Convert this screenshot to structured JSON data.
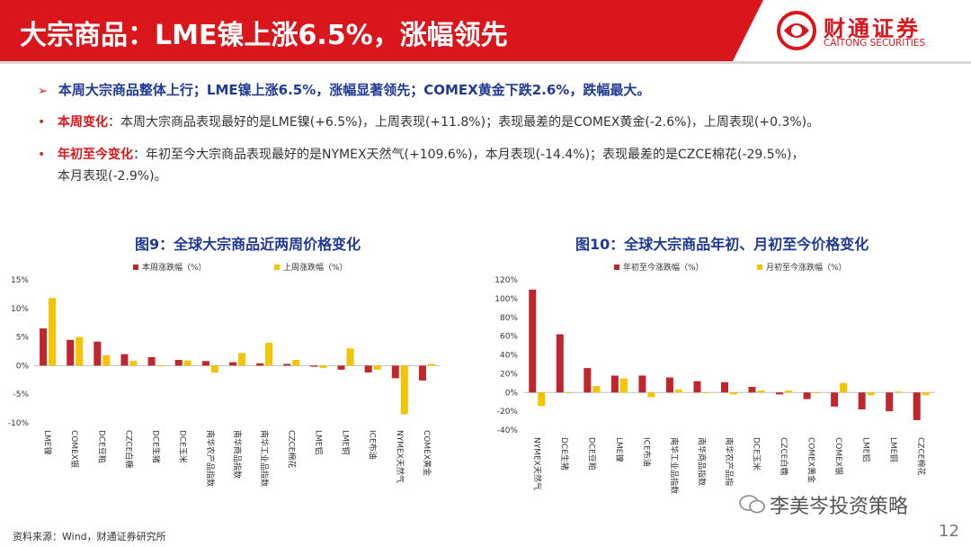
{
  "header": {
    "title": "大宗商品：LME镍上涨6.5%，涨幅领先",
    "logo_cn": "财通证券",
    "logo_en": "CAITONG SECURITIES",
    "brand_color": "#d9161c"
  },
  "summary": "本周大宗商品整体上行；LME镍上涨6.5%，涨幅显著领先；COMEX黄金下跌2.6%，跌幅最大。",
  "bullets": [
    {
      "label": "本周变化",
      "text": "：本周大宗商品表现最好的是LME镍(+6.5%)，上周表现(+11.8%)；表现最差的是COMEX黄金(-2.6%)，上周表现(+0.3%)。"
    },
    {
      "label": "年初至今变化",
      "text": "：年初至今大宗商品表现最好的是NYMEX天然气(+109.6%)，本月表现(-14.4%)；表现最差的是CZCE棉花(-29.5%)，",
      "text2": "本月表现(-2.9%)。"
    }
  ],
  "chart_data": [
    {
      "type": "bar",
      "title": "图9：全球大宗商品近两周价格变化",
      "categories": [
        "LME镍",
        "COMEX银",
        "DCE豆粕",
        "CZCE白糖",
        "DCE生猪",
        "DCE玉米",
        "南华农产品指数",
        "南华商品指数",
        "南华工业品指数",
        "CZCE棉花",
        "LME铝",
        "LME铜",
        "ICE布油",
        "NYMEX天然气",
        "COMEX黄金"
      ],
      "series": [
        {
          "name": "本周涨跌幅（%）",
          "color": "#c0262d",
          "values": [
            6.5,
            4.5,
            4.2,
            2.0,
            1.5,
            1.0,
            0.8,
            0.6,
            0.4,
            0.3,
            -0.2,
            -0.7,
            -1.2,
            -2.2,
            -2.6
          ]
        },
        {
          "name": "上周涨跌幅（%）",
          "color": "#f5c400",
          "values": [
            11.8,
            5.0,
            1.8,
            0.8,
            0.0,
            0.9,
            -1.2,
            2.2,
            4.0,
            1.0,
            -0.4,
            3.0,
            -0.7,
            -8.5,
            0.3
          ]
        }
      ],
      "yticks": [
        "15%",
        "10%",
        "5%",
        "0%",
        "-5%",
        "-10%"
      ],
      "ylim": [
        -10,
        15
      ]
    },
    {
      "type": "bar",
      "title": "图10：全球大宗商品年初、月初至今价格变化",
      "categories": [
        "NYMEX天然气",
        "DCE生猪",
        "DCE豆粕",
        "LME镍",
        "ICE布油",
        "南华工业品指数",
        "南华商品指数",
        "南华农产品指",
        "DCE玉米",
        "CZCE白糖",
        "COMEX黄金",
        "COMEX银",
        "LME铝",
        "LME铜",
        "CZCE棉花"
      ],
      "series": [
        {
          "name": "年初至今涨跌幅（%）",
          "color": "#c0262d",
          "values": [
            109.6,
            62,
            26,
            18,
            18,
            16,
            12,
            11,
            6,
            -2,
            -7,
            -15,
            -18,
            -20,
            -29.5
          ]
        },
        {
          "name": "月初至今涨跌幅（%）",
          "color": "#f5c400",
          "values": [
            -14.4,
            0,
            7,
            15,
            -5,
            3,
            0,
            -2,
            2,
            2,
            0,
            10,
            -3,
            1,
            -2.9
          ]
        }
      ],
      "yticks": [
        "120%",
        "100%",
        "80%",
        "60%",
        "40%",
        "20%",
        "0%",
        "-20%",
        "-40%"
      ],
      "ylim": [
        -40,
        120
      ]
    }
  ],
  "footer": {
    "source": "资料来源：Wind，财通证券研究所",
    "wechat": "李美岑投资策略",
    "page": "12"
  }
}
